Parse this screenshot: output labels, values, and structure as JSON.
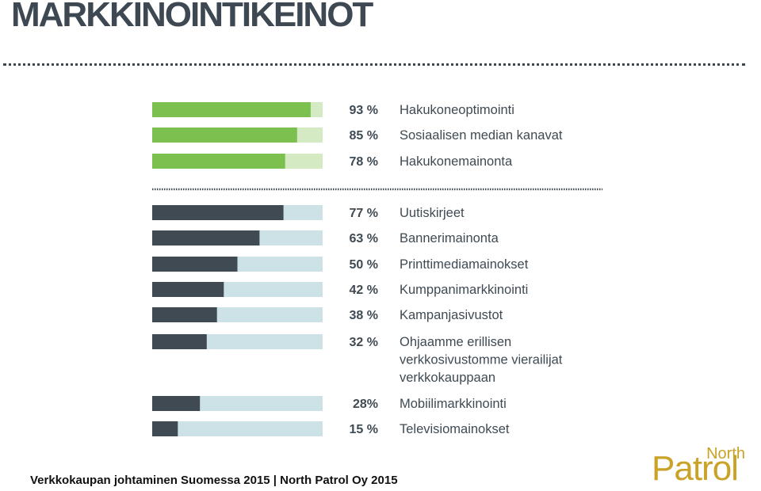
{
  "page": {
    "title": "MARKKINOINTIKEINOT",
    "footer": "Verkkokaupan johtaminen Suomessa 2015 | North Patrol Oy 2015"
  },
  "logo": {
    "line1": "North",
    "line2": "Patrol"
  },
  "colors": {
    "title": "#3d4852",
    "green_bar": "#7cc04f",
    "green_track": "#d4eac3",
    "dark_bar": "#3f4a53",
    "dark_track": "#cde2e7",
    "logo": "#c9a227"
  },
  "chart_data": {
    "type": "bar",
    "orientation": "horizontal",
    "xlim": [
      0,
      100
    ],
    "groups": [
      {
        "color": "green",
        "items": [
          {
            "value_label": "93 %",
            "value": 93,
            "label": [
              "Hakukoneoptimointi"
            ]
          },
          {
            "value_label": "85 %",
            "value": 85,
            "label": [
              "Sosiaalisen median kanavat"
            ]
          },
          {
            "value_label": "78 %",
            "value": 78,
            "label": [
              "Hakukonemainonta"
            ]
          }
        ]
      },
      {
        "color": "dark",
        "items": [
          {
            "value_label": "77 %",
            "value": 77,
            "label": [
              "Uutiskirjeet"
            ]
          },
          {
            "value_label": "63 %",
            "value": 63,
            "label": [
              "Bannerimainonta"
            ]
          },
          {
            "value_label": "50 %",
            "value": 50,
            "label": [
              "Printtimediamainokset"
            ]
          },
          {
            "value_label": "42 %",
            "value": 42,
            "label": [
              "Kumppanimarkkinointi"
            ]
          },
          {
            "value_label": "38 %",
            "value": 38,
            "label": [
              "Kampanjasivustot"
            ]
          },
          {
            "value_label": "32 %",
            "value": 32,
            "label": [
              "Ohjaamme erillisen",
              "verkkosivustomme vierailijat",
              "verkkokauppaan"
            ]
          },
          {
            "value_label": "28%",
            "value": 28,
            "label": [
              "Mobiilimarkkinointi"
            ]
          },
          {
            "value_label": "15 %",
            "value": 15,
            "label": [
              "Televisiomainokset"
            ]
          }
        ]
      }
    ]
  }
}
